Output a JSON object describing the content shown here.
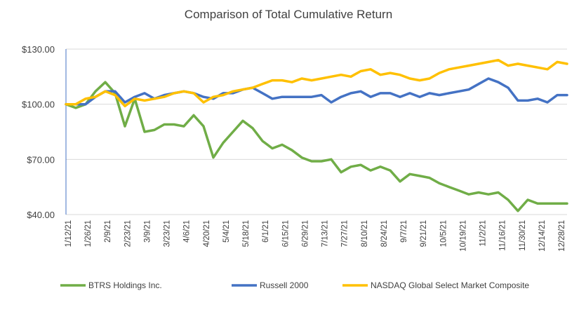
{
  "chart_data": {
    "type": "line",
    "title": "Comparison of Total Cumulative Return",
    "xlabel": "",
    "ylabel": "",
    "ylim": [
      40,
      130
    ],
    "y_ticks": [
      40,
      70,
      100,
      130
    ],
    "y_tick_labels": [
      "$40.00",
      "$70.00",
      "$100.00",
      "$130.00"
    ],
    "grid": true,
    "legend_position": "bottom",
    "x_tick_labels": [
      "1/12/21",
      "1/26/21",
      "2/9/21",
      "2/23/21",
      "3/9/21",
      "3/23/21",
      "4/6/21",
      "4/20/21",
      "5/4/21",
      "5/18/21",
      "6/1/21",
      "6/15/21",
      "6/29/21",
      "7/13/21",
      "7/27/21",
      "8/10/21",
      "8/24/21",
      "9/7/21",
      "9/21/21",
      "10/5/21",
      "10/19/21",
      "11/2/21",
      "11/16/21",
      "11/30/21",
      "12/14/21",
      "12/28/21"
    ],
    "series": [
      {
        "name": "BTRS Holdings Inc.",
        "color": "#70ad47",
        "values": [
          100,
          98,
          100,
          107,
          112,
          106,
          88,
          103,
          85,
          86,
          89,
          89,
          88,
          94,
          88,
          71,
          79,
          85,
          91,
          87,
          80,
          76,
          78,
          75,
          71,
          69,
          69,
          70,
          63,
          66,
          67,
          64,
          66,
          64,
          58,
          62,
          61,
          60,
          57,
          55,
          53,
          51,
          52,
          51,
          52,
          48,
          42,
          48,
          46,
          46,
          46,
          46
        ]
      },
      {
        "name": "Russell 2000",
        "color": "#4472c4",
        "values": [
          100,
          100,
          100,
          104,
          107,
          107,
          101,
          104,
          106,
          103,
          105,
          106,
          107,
          106,
          104,
          103,
          106,
          106,
          108,
          109,
          106,
          103,
          104,
          104,
          104,
          104,
          105,
          101,
          104,
          106,
          107,
          104,
          106,
          106,
          104,
          106,
          104,
          106,
          105,
          106,
          107,
          108,
          111,
          114,
          112,
          109,
          102,
          102,
          103,
          101,
          105,
          105
        ]
      },
      {
        "name": "NASDAQ Global Select Market Composite",
        "color": "#ffc000",
        "values": [
          100,
          100,
          103,
          104,
          107,
          105,
          99,
          103,
          102,
          103,
          104,
          106,
          107,
          106,
          101,
          104,
          105,
          107,
          108,
          109,
          111,
          113,
          113,
          112,
          114,
          113,
          114,
          115,
          116,
          115,
          118,
          119,
          116,
          117,
          116,
          114,
          113,
          114,
          117,
          119,
          120,
          121,
          122,
          123,
          124,
          121,
          122,
          121,
          120,
          119,
          123,
          122
        ]
      }
    ]
  }
}
